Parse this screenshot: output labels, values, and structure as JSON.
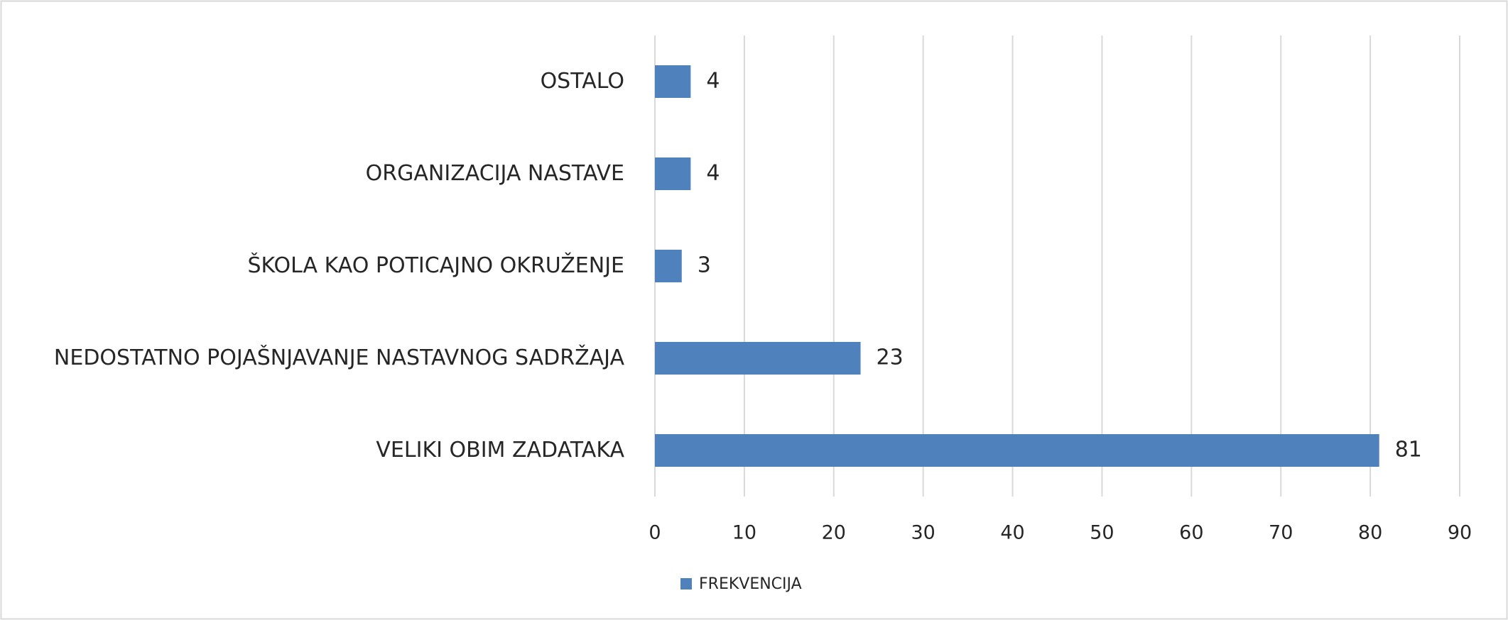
{
  "chart_data": {
    "type": "bar",
    "orientation": "horizontal",
    "categories": [
      "OSTALO",
      "ORGANIZACIJA NASTAVE",
      "ŠKOLA KAO POTICAJNO OKRUŽENJE",
      "NEDOSTATNO POJAŠNJAVANJE NASTAVNOG SADRŽAJA",
      "VELIKI OBIM ZADATAKA"
    ],
    "series": [
      {
        "name": "FREKVENCIJA",
        "color": "#4f81bd",
        "values": [
          4,
          4,
          3,
          23,
          81
        ]
      }
    ],
    "xlim": [
      0,
      90
    ],
    "xticks": [
      0,
      10,
      20,
      30,
      40,
      50,
      60,
      70,
      80,
      90
    ],
    "grid": true,
    "legend": "bottom",
    "data_labels": true
  }
}
